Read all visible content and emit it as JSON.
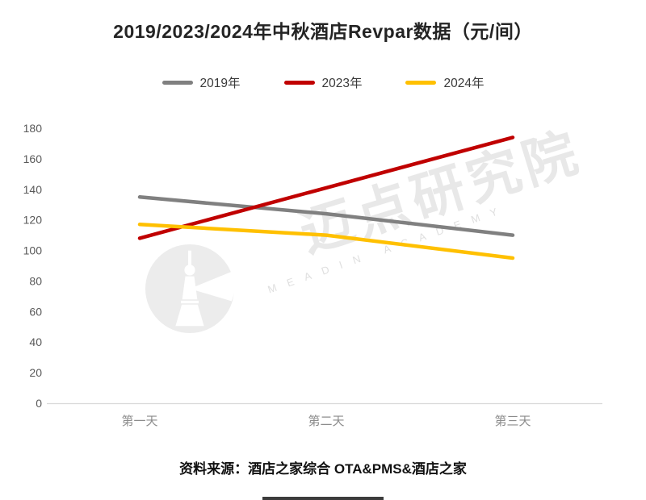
{
  "page": {
    "source": "资料来源：酒店之家综合 OTA&PMS&酒店之家",
    "watermark_cn": "迈点研究院",
    "watermark_en": "MEADIN ACADEMY"
  },
  "chart_data": {
    "type": "line",
    "title": "2019/2023/2024年中秋酒店Revpar数据（元/间）",
    "categories": [
      "第一天",
      "第二天",
      "第三天"
    ],
    "series": [
      {
        "name": "2019年",
        "color": "#808080",
        "values": [
          135,
          124,
          110
        ]
      },
      {
        "name": "2023年",
        "color": "#C00000",
        "values": [
          108,
          141,
          174
        ]
      },
      {
        "name": "2024年",
        "color": "#FFC000",
        "values": [
          117,
          110,
          95
        ]
      }
    ],
    "xlabel": "",
    "ylabel": "",
    "ylim": [
      0,
      180
    ],
    "ytick_step": 20,
    "grid": false,
    "legend_position": "top",
    "axis_line_color": "#d9d9d9"
  }
}
